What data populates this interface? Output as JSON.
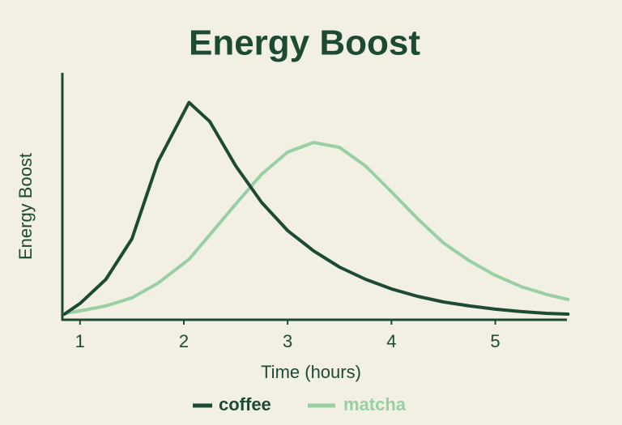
{
  "chart_data": {
    "type": "line",
    "title": "Energy Boost",
    "x_label": "Time (hours)",
    "y_label": "Energy Boost",
    "x": [
      0.85,
      1.0,
      1.25,
      1.5,
      1.75,
      2.05,
      2.25,
      2.5,
      2.75,
      3.0,
      3.25,
      3.5,
      3.75,
      4.0,
      4.25,
      4.5,
      4.75,
      5.0,
      5.25,
      5.5,
      5.7
    ],
    "series": [
      {
        "name": "coffee",
        "color": "#1d4a33",
        "values": [
          2.3,
          6.6,
          16.4,
          32.8,
          63.9,
          88,
          80.3,
          62.3,
          47.5,
          36.1,
          27.9,
          21.3,
          16.4,
          12.5,
          9.5,
          7.2,
          5.6,
          4.3,
          3.3,
          2.6,
          2.3
        ]
      },
      {
        "name": "matcha",
        "color": "#98cfa3",
        "values": [
          2.6,
          3.6,
          5.6,
          8.9,
          14.8,
          24.5,
          34.4,
          46.9,
          59,
          67.9,
          71.8,
          69.8,
          62.3,
          51.8,
          41,
          31.1,
          23.9,
          18,
          13.4,
          10.2,
          8.2
        ]
      }
    ],
    "xlim": [
      0.83,
      5.69
    ],
    "xticks": [
      1,
      2,
      3,
      4,
      5
    ],
    "ylim": [
      0,
      100
    ],
    "legend": "bottom"
  }
}
